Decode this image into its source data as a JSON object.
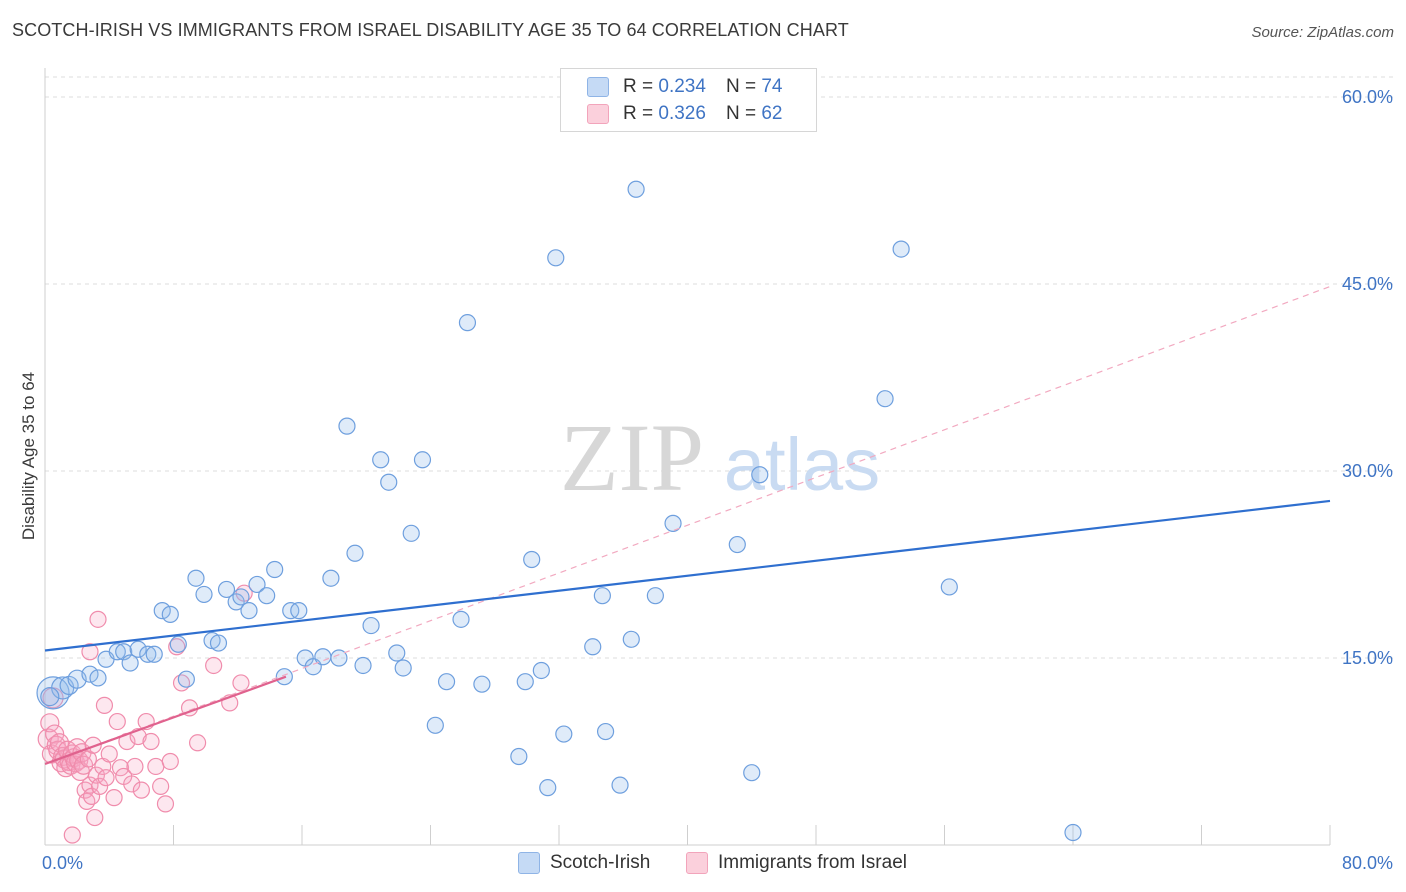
{
  "header": {
    "title": "SCOTCH-IRISH VS IMMIGRANTS FROM ISRAEL DISABILITY AGE 35 TO 64 CORRELATION CHART",
    "source": "Source: ZipAtlas.com"
  },
  "watermark": {
    "zip": "ZIP",
    "atlas": "atlas"
  },
  "legend": {
    "rows": [
      {
        "r_label": "R =",
        "r_value": "0.234",
        "n_label": "N =",
        "n_value": "74",
        "color": "#a9c8f0"
      },
      {
        "r_label": "R =",
        "r_value": "0.326",
        "n_label": "N =",
        "n_value": "62",
        "color": "#f5b9cb"
      }
    ]
  },
  "bottom_legend": {
    "series1": "Scotch-Irish",
    "series2": "Immigrants from Israel"
  },
  "chart_data": {
    "type": "scatter",
    "title": "SCOTCH-IRISH VS IMMIGRANTS FROM ISRAEL DISABILITY AGE 35 TO 64 CORRELATION CHART",
    "xlabel": "",
    "ylabel": "Disability Age 35 to 64",
    "xlim": [
      0,
      80
    ],
    "ylim": [
      0,
      60
    ],
    "x_tick_labels": [
      "0.0%",
      "80.0%"
    ],
    "y_ticks": [
      15,
      30,
      45,
      60
    ],
    "y_tick_labels": [
      "15.0%",
      "30.0%",
      "45.0%",
      "60.0%"
    ],
    "grid": true,
    "legend_position": "top-center",
    "colors": {
      "blue": "#6fa0e0",
      "blue_line": "#2f6fcf",
      "pink": "#f07aa0",
      "pink_line": "#e0628e"
    },
    "series": [
      {
        "name": "Scotch-Irish",
        "trend": {
          "x": [
            0,
            80
          ],
          "y": [
            15.6,
            27.6
          ]
        },
        "points": [
          {
            "x": 0.5,
            "y": 12.2,
            "s": 16
          },
          {
            "x": 1.1,
            "y": 12.6,
            "s": 11
          },
          {
            "x": 1.5,
            "y": 12.8,
            "s": 9
          },
          {
            "x": 2.0,
            "y": 13.3,
            "s": 9
          },
          {
            "x": 2.8,
            "y": 13.7,
            "s": 8
          },
          {
            "x": 3.3,
            "y": 13.4,
            "s": 8
          },
          {
            "x": 3.8,
            "y": 14.9,
            "s": 8
          },
          {
            "x": 4.5,
            "y": 15.5,
            "s": 8
          },
          {
            "x": 4.9,
            "y": 15.5,
            "s": 8
          },
          {
            "x": 5.3,
            "y": 14.6,
            "s": 8
          },
          {
            "x": 5.8,
            "y": 15.7,
            "s": 8
          },
          {
            "x": 6.4,
            "y": 15.3,
            "s": 8
          },
          {
            "x": 6.8,
            "y": 15.3,
            "s": 8
          },
          {
            "x": 7.3,
            "y": 18.8,
            "s": 8
          },
          {
            "x": 7.8,
            "y": 18.5,
            "s": 8
          },
          {
            "x": 8.3,
            "y": 16.1,
            "s": 8
          },
          {
            "x": 8.8,
            "y": 13.3,
            "s": 8
          },
          {
            "x": 9.4,
            "y": 21.4,
            "s": 8
          },
          {
            "x": 9.9,
            "y": 20.1,
            "s": 8
          },
          {
            "x": 10.4,
            "y": 16.4,
            "s": 8
          },
          {
            "x": 10.8,
            "y": 16.2,
            "s": 8
          },
          {
            "x": 11.3,
            "y": 20.5,
            "s": 8
          },
          {
            "x": 11.9,
            "y": 19.5,
            "s": 8
          },
          {
            "x": 12.2,
            "y": 19.9,
            "s": 8
          },
          {
            "x": 12.7,
            "y": 18.8,
            "s": 8
          },
          {
            "x": 13.2,
            "y": 20.9,
            "s": 8
          },
          {
            "x": 13.8,
            "y": 20.0,
            "s": 8
          },
          {
            "x": 14.3,
            "y": 22.1,
            "s": 8
          },
          {
            "x": 14.9,
            "y": 13.5,
            "s": 8
          },
          {
            "x": 15.3,
            "y": 18.8,
            "s": 8
          },
          {
            "x": 15.8,
            "y": 18.8,
            "s": 8
          },
          {
            "x": 16.2,
            "y": 15.0,
            "s": 8
          },
          {
            "x": 16.7,
            "y": 14.3,
            "s": 8
          },
          {
            "x": 17.3,
            "y": 15.1,
            "s": 8
          },
          {
            "x": 17.8,
            "y": 21.4,
            "s": 8
          },
          {
            "x": 18.3,
            "y": 15.0,
            "s": 8
          },
          {
            "x": 18.8,
            "y": 33.6,
            "s": 8
          },
          {
            "x": 19.3,
            "y": 23.4,
            "s": 8
          },
          {
            "x": 19.8,
            "y": 14.4,
            "s": 8
          },
          {
            "x": 20.3,
            "y": 17.6,
            "s": 8
          },
          {
            "x": 20.9,
            "y": 30.9,
            "s": 8
          },
          {
            "x": 21.4,
            "y": 29.1,
            "s": 8
          },
          {
            "x": 21.9,
            "y": 15.4,
            "s": 8
          },
          {
            "x": 22.3,
            "y": 14.2,
            "s": 8
          },
          {
            "x": 22.8,
            "y": 25.0,
            "s": 8
          },
          {
            "x": 23.5,
            "y": 30.9,
            "s": 8
          },
          {
            "x": 24.3,
            "y": 9.6,
            "s": 8
          },
          {
            "x": 25.0,
            "y": 13.1,
            "s": 8
          },
          {
            "x": 25.9,
            "y": 18.1,
            "s": 8
          },
          {
            "x": 26.3,
            "y": 41.9,
            "s": 8
          },
          {
            "x": 27.2,
            "y": 12.9,
            "s": 8
          },
          {
            "x": 29.5,
            "y": 7.1,
            "s": 8
          },
          {
            "x": 29.9,
            "y": 13.1,
            "s": 8
          },
          {
            "x": 30.3,
            "y": 22.9,
            "s": 8
          },
          {
            "x": 30.9,
            "y": 14.0,
            "s": 8
          },
          {
            "x": 31.3,
            "y": 4.6,
            "s": 8
          },
          {
            "x": 31.8,
            "y": 47.1,
            "s": 8
          },
          {
            "x": 32.3,
            "y": 8.9,
            "s": 8
          },
          {
            "x": 34.1,
            "y": 15.9,
            "s": 8
          },
          {
            "x": 34.7,
            "y": 20.0,
            "s": 8
          },
          {
            "x": 34.9,
            "y": 9.1,
            "s": 8
          },
          {
            "x": 35.8,
            "y": 4.8,
            "s": 8
          },
          {
            "x": 36.5,
            "y": 16.5,
            "s": 8
          },
          {
            "x": 36.8,
            "y": 52.6,
            "s": 8
          },
          {
            "x": 38.0,
            "y": 20.0,
            "s": 8
          },
          {
            "x": 39.1,
            "y": 25.8,
            "s": 8
          },
          {
            "x": 43.1,
            "y": 24.1,
            "s": 8
          },
          {
            "x": 44.0,
            "y": 5.8,
            "s": 8
          },
          {
            "x": 44.5,
            "y": 29.7,
            "s": 8
          },
          {
            "x": 52.3,
            "y": 35.8,
            "s": 8
          },
          {
            "x": 53.3,
            "y": 47.8,
            "s": 8
          },
          {
            "x": 56.3,
            "y": 20.7,
            "s": 8
          },
          {
            "x": 64.0,
            "y": 1.0,
            "s": 8
          },
          {
            "x": 0.3,
            "y": 11.9,
            "s": 9
          }
        ]
      },
      {
        "name": "Immigrants from Israel",
        "trend": {
          "x": [
            0,
            15
          ],
          "y": [
            6.5,
            13.5
          ]
        },
        "trend_extended": {
          "x": [
            0,
            80
          ],
          "y": [
            6.5,
            44.8
          ]
        },
        "points": [
          {
            "x": 0.2,
            "y": 8.5,
            "s": 10
          },
          {
            "x": 0.3,
            "y": 9.8,
            "s": 9
          },
          {
            "x": 0.4,
            "y": 7.3,
            "s": 9
          },
          {
            "x": 0.5,
            "y": 11.8,
            "s": 10
          },
          {
            "x": 0.6,
            "y": 8.9,
            "s": 9
          },
          {
            "x": 0.7,
            "y": 8.0,
            "s": 9
          },
          {
            "x": 0.8,
            "y": 7.6,
            "s": 9
          },
          {
            "x": 0.9,
            "y": 8.2,
            "s": 9
          },
          {
            "x": 1.0,
            "y": 6.6,
            "s": 9
          },
          {
            "x": 1.1,
            "y": 7.1,
            "s": 9
          },
          {
            "x": 1.2,
            "y": 6.9,
            "s": 9
          },
          {
            "x": 1.3,
            "y": 6.2,
            "s": 9
          },
          {
            "x": 1.4,
            "y": 7.6,
            "s": 9
          },
          {
            "x": 1.5,
            "y": 6.7,
            "s": 9
          },
          {
            "x": 1.6,
            "y": 6.4,
            "s": 9
          },
          {
            "x": 1.7,
            "y": 7.3,
            "s": 9
          },
          {
            "x": 1.8,
            "y": 7.0,
            "s": 9
          },
          {
            "x": 1.9,
            "y": 6.6,
            "s": 9
          },
          {
            "x": 2.0,
            "y": 7.8,
            "s": 9
          },
          {
            "x": 2.1,
            "y": 6.8,
            "s": 9
          },
          {
            "x": 2.2,
            "y": 5.9,
            "s": 9
          },
          {
            "x": 2.3,
            "y": 7.4,
            "s": 9
          },
          {
            "x": 2.4,
            "y": 6.4,
            "s": 9
          },
          {
            "x": 2.5,
            "y": 4.4,
            "s": 8
          },
          {
            "x": 2.6,
            "y": 3.5,
            "s": 8
          },
          {
            "x": 2.7,
            "y": 6.9,
            "s": 8
          },
          {
            "x": 2.8,
            "y": 4.8,
            "s": 8
          },
          {
            "x": 2.9,
            "y": 3.9,
            "s": 8
          },
          {
            "x": 3.0,
            "y": 8.0,
            "s": 8
          },
          {
            "x": 3.2,
            "y": 5.6,
            "s": 8
          },
          {
            "x": 3.4,
            "y": 4.7,
            "s": 8
          },
          {
            "x": 3.6,
            "y": 6.3,
            "s": 8
          },
          {
            "x": 3.8,
            "y": 5.4,
            "s": 8
          },
          {
            "x": 4.0,
            "y": 7.3,
            "s": 8
          },
          {
            "x": 4.3,
            "y": 3.8,
            "s": 8
          },
          {
            "x": 4.5,
            "y": 9.9,
            "s": 8
          },
          {
            "x": 4.7,
            "y": 6.2,
            "s": 8
          },
          {
            "x": 4.9,
            "y": 5.5,
            "s": 8
          },
          {
            "x": 5.1,
            "y": 8.3,
            "s": 8
          },
          {
            "x": 5.4,
            "y": 4.9,
            "s": 8
          },
          {
            "x": 5.6,
            "y": 6.3,
            "s": 8
          },
          {
            "x": 5.8,
            "y": 8.7,
            "s": 8
          },
          {
            "x": 6.0,
            "y": 4.4,
            "s": 8
          },
          {
            "x": 6.3,
            "y": 9.9,
            "s": 8
          },
          {
            "x": 6.6,
            "y": 8.3,
            "s": 8
          },
          {
            "x": 6.9,
            "y": 6.3,
            "s": 8
          },
          {
            "x": 7.2,
            "y": 4.7,
            "s": 8
          },
          {
            "x": 7.5,
            "y": 3.3,
            "s": 8
          },
          {
            "x": 7.8,
            "y": 6.7,
            "s": 8
          },
          {
            "x": 8.2,
            "y": 15.9,
            "s": 8
          },
          {
            "x": 8.5,
            "y": 13.0,
            "s": 8
          },
          {
            "x": 9.0,
            "y": 11.0,
            "s": 8
          },
          {
            "x": 9.5,
            "y": 8.2,
            "s": 8
          },
          {
            "x": 10.5,
            "y": 14.4,
            "s": 8
          },
          {
            "x": 11.5,
            "y": 11.4,
            "s": 8
          },
          {
            "x": 12.2,
            "y": 13.0,
            "s": 8
          },
          {
            "x": 12.4,
            "y": 20.2,
            "s": 8
          },
          {
            "x": 3.3,
            "y": 18.1,
            "s": 8
          },
          {
            "x": 3.7,
            "y": 11.2,
            "s": 8
          },
          {
            "x": 2.8,
            "y": 15.5,
            "s": 8
          },
          {
            "x": 1.7,
            "y": 0.8,
            "s": 8
          },
          {
            "x": 3.1,
            "y": 2.2,
            "s": 8
          }
        ]
      }
    ]
  }
}
